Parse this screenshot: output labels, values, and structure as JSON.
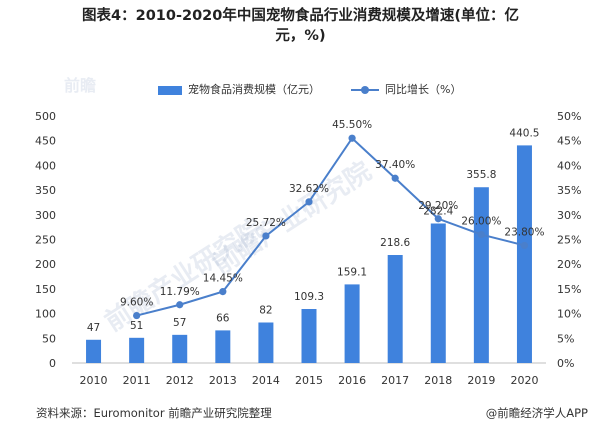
{
  "title_line1": "图表4：2010-2020年中国宠物食品行业消费规模及增速(单位：亿",
  "title_line2": "元，%)",
  "legend": {
    "bar": "宠物食品消费规模（亿元）",
    "line": "同比增长（%）"
  },
  "footer": {
    "source": "资料来源：Euromonitor 前瞻产业研究院整理",
    "brand": "@前瞻经济学人APP"
  },
  "watermark": {
    "left": "前瞻产业研究院",
    "center": "前瞻产业研究院",
    "logo": "前瞻"
  },
  "chart_data": {
    "type": "bar",
    "categories": [
      "2010",
      "2011",
      "2012",
      "2013",
      "2014",
      "2015",
      "2016",
      "2017",
      "2018",
      "2019",
      "2020"
    ],
    "series": [
      {
        "name": "宠物食品消费规模（亿元）",
        "type": "bar",
        "axis": "left",
        "values": [
          47,
          51,
          57,
          66,
          82,
          109.3,
          159.1,
          218.6,
          282.4,
          355.8,
          440.5
        ],
        "labels": [
          "47",
          "51",
          "57",
          "66",
          "82",
          "109.3",
          "159.1",
          "218.6",
          "282.4",
          "355.8",
          "440.5"
        ],
        "color": "#3f82dd"
      },
      {
        "name": "同比增长（%）",
        "type": "line",
        "axis": "right",
        "x": [
          "2011",
          "2012",
          "2013",
          "2014",
          "2015",
          "2016",
          "2017",
          "2018",
          "2019",
          "2020"
        ],
        "values": [
          9.6,
          11.79,
          14.45,
          25.72,
          32.62,
          45.5,
          37.4,
          29.2,
          26.0,
          23.8
        ],
        "labels": [
          "9.60%",
          "11.79%",
          "14.45%",
          "25.72%",
          "32.62%",
          "45.50%",
          "37.40%",
          "29.20%",
          "26.00%",
          "23.80%"
        ],
        "color": "#4a7fcb"
      }
    ],
    "ylim_left": [
      0,
      500
    ],
    "yticks_left": [
      "0",
      "50",
      "100",
      "150",
      "200",
      "250",
      "300",
      "350",
      "400",
      "450",
      "500"
    ],
    "ylim_right": [
      0,
      50
    ],
    "yticks_right": [
      "0%",
      "5%",
      "10%",
      "15%",
      "20%",
      "25%",
      "30%",
      "35%",
      "40%",
      "45%",
      "50%"
    ],
    "grid": false,
    "legend_position": "top"
  }
}
